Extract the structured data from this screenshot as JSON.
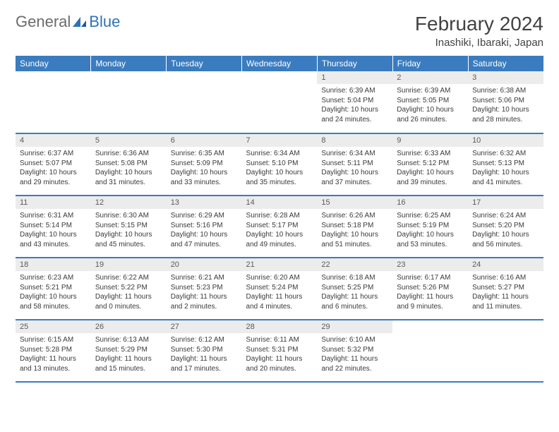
{
  "logo": {
    "word1": "General",
    "word2": "Blue"
  },
  "title": "February 2024",
  "location": "Inashiki, Ibaraki, Japan",
  "colors": {
    "header_bg": "#3a7cbf",
    "header_text": "#ffffff",
    "daynum_bg": "#ececec",
    "daynum_text": "#5a5a5a",
    "body_text": "#3a3a3a",
    "logo_gray": "#6b6b6b",
    "logo_blue": "#2e74b5"
  },
  "day_headers": [
    "Sunday",
    "Monday",
    "Tuesday",
    "Wednesday",
    "Thursday",
    "Friday",
    "Saturday"
  ],
  "weeks": [
    [
      {
        "n": "",
        "sr": "",
        "ss": "",
        "dl": ""
      },
      {
        "n": "",
        "sr": "",
        "ss": "",
        "dl": ""
      },
      {
        "n": "",
        "sr": "",
        "ss": "",
        "dl": ""
      },
      {
        "n": "",
        "sr": "",
        "ss": "",
        "dl": ""
      },
      {
        "n": "1",
        "sr": "Sunrise: 6:39 AM",
        "ss": "Sunset: 5:04 PM",
        "dl": "Daylight: 10 hours and 24 minutes."
      },
      {
        "n": "2",
        "sr": "Sunrise: 6:39 AM",
        "ss": "Sunset: 5:05 PM",
        "dl": "Daylight: 10 hours and 26 minutes."
      },
      {
        "n": "3",
        "sr": "Sunrise: 6:38 AM",
        "ss": "Sunset: 5:06 PM",
        "dl": "Daylight: 10 hours and 28 minutes."
      }
    ],
    [
      {
        "n": "4",
        "sr": "Sunrise: 6:37 AM",
        "ss": "Sunset: 5:07 PM",
        "dl": "Daylight: 10 hours and 29 minutes."
      },
      {
        "n": "5",
        "sr": "Sunrise: 6:36 AM",
        "ss": "Sunset: 5:08 PM",
        "dl": "Daylight: 10 hours and 31 minutes."
      },
      {
        "n": "6",
        "sr": "Sunrise: 6:35 AM",
        "ss": "Sunset: 5:09 PM",
        "dl": "Daylight: 10 hours and 33 minutes."
      },
      {
        "n": "7",
        "sr": "Sunrise: 6:34 AM",
        "ss": "Sunset: 5:10 PM",
        "dl": "Daylight: 10 hours and 35 minutes."
      },
      {
        "n": "8",
        "sr": "Sunrise: 6:34 AM",
        "ss": "Sunset: 5:11 PM",
        "dl": "Daylight: 10 hours and 37 minutes."
      },
      {
        "n": "9",
        "sr": "Sunrise: 6:33 AM",
        "ss": "Sunset: 5:12 PM",
        "dl": "Daylight: 10 hours and 39 minutes."
      },
      {
        "n": "10",
        "sr": "Sunrise: 6:32 AM",
        "ss": "Sunset: 5:13 PM",
        "dl": "Daylight: 10 hours and 41 minutes."
      }
    ],
    [
      {
        "n": "11",
        "sr": "Sunrise: 6:31 AM",
        "ss": "Sunset: 5:14 PM",
        "dl": "Daylight: 10 hours and 43 minutes."
      },
      {
        "n": "12",
        "sr": "Sunrise: 6:30 AM",
        "ss": "Sunset: 5:15 PM",
        "dl": "Daylight: 10 hours and 45 minutes."
      },
      {
        "n": "13",
        "sr": "Sunrise: 6:29 AM",
        "ss": "Sunset: 5:16 PM",
        "dl": "Daylight: 10 hours and 47 minutes."
      },
      {
        "n": "14",
        "sr": "Sunrise: 6:28 AM",
        "ss": "Sunset: 5:17 PM",
        "dl": "Daylight: 10 hours and 49 minutes."
      },
      {
        "n": "15",
        "sr": "Sunrise: 6:26 AM",
        "ss": "Sunset: 5:18 PM",
        "dl": "Daylight: 10 hours and 51 minutes."
      },
      {
        "n": "16",
        "sr": "Sunrise: 6:25 AM",
        "ss": "Sunset: 5:19 PM",
        "dl": "Daylight: 10 hours and 53 minutes."
      },
      {
        "n": "17",
        "sr": "Sunrise: 6:24 AM",
        "ss": "Sunset: 5:20 PM",
        "dl": "Daylight: 10 hours and 56 minutes."
      }
    ],
    [
      {
        "n": "18",
        "sr": "Sunrise: 6:23 AM",
        "ss": "Sunset: 5:21 PM",
        "dl": "Daylight: 10 hours and 58 minutes."
      },
      {
        "n": "19",
        "sr": "Sunrise: 6:22 AM",
        "ss": "Sunset: 5:22 PM",
        "dl": "Daylight: 11 hours and 0 minutes."
      },
      {
        "n": "20",
        "sr": "Sunrise: 6:21 AM",
        "ss": "Sunset: 5:23 PM",
        "dl": "Daylight: 11 hours and 2 minutes."
      },
      {
        "n": "21",
        "sr": "Sunrise: 6:20 AM",
        "ss": "Sunset: 5:24 PM",
        "dl": "Daylight: 11 hours and 4 minutes."
      },
      {
        "n": "22",
        "sr": "Sunrise: 6:18 AM",
        "ss": "Sunset: 5:25 PM",
        "dl": "Daylight: 11 hours and 6 minutes."
      },
      {
        "n": "23",
        "sr": "Sunrise: 6:17 AM",
        "ss": "Sunset: 5:26 PM",
        "dl": "Daylight: 11 hours and 9 minutes."
      },
      {
        "n": "24",
        "sr": "Sunrise: 6:16 AM",
        "ss": "Sunset: 5:27 PM",
        "dl": "Daylight: 11 hours and 11 minutes."
      }
    ],
    [
      {
        "n": "25",
        "sr": "Sunrise: 6:15 AM",
        "ss": "Sunset: 5:28 PM",
        "dl": "Daylight: 11 hours and 13 minutes."
      },
      {
        "n": "26",
        "sr": "Sunrise: 6:13 AM",
        "ss": "Sunset: 5:29 PM",
        "dl": "Daylight: 11 hours and 15 minutes."
      },
      {
        "n": "27",
        "sr": "Sunrise: 6:12 AM",
        "ss": "Sunset: 5:30 PM",
        "dl": "Daylight: 11 hours and 17 minutes."
      },
      {
        "n": "28",
        "sr": "Sunrise: 6:11 AM",
        "ss": "Sunset: 5:31 PM",
        "dl": "Daylight: 11 hours and 20 minutes."
      },
      {
        "n": "29",
        "sr": "Sunrise: 6:10 AM",
        "ss": "Sunset: 5:32 PM",
        "dl": "Daylight: 11 hours and 22 minutes."
      },
      {
        "n": "",
        "sr": "",
        "ss": "",
        "dl": ""
      },
      {
        "n": "",
        "sr": "",
        "ss": "",
        "dl": ""
      }
    ]
  ]
}
